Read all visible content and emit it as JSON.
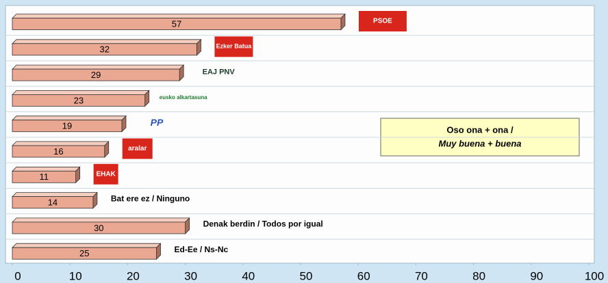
{
  "chart_data": {
    "type": "hbar3d",
    "categories": [
      "PSOE",
      "Ezker Batua",
      "EAJ PNV",
      "eusko alkartasuna",
      "PP",
      "aralar",
      "EHAK",
      "Bat ere ez / Ninguno",
      "Denak berdin / Todos por igual",
      "Ed-Ee / Ns-Nc"
    ],
    "values": [
      57,
      32,
      29,
      23,
      19,
      16,
      11,
      14,
      30,
      25
    ],
    "color": "#eaa892",
    "xlim": [
      0,
      100
    ],
    "xticks": [
      0,
      10,
      20,
      30,
      40,
      50,
      60,
      70,
      80,
      90,
      100
    ],
    "annotations": [
      "Oso ona + ona /",
      "Muy buena + buena"
    ]
  }
}
